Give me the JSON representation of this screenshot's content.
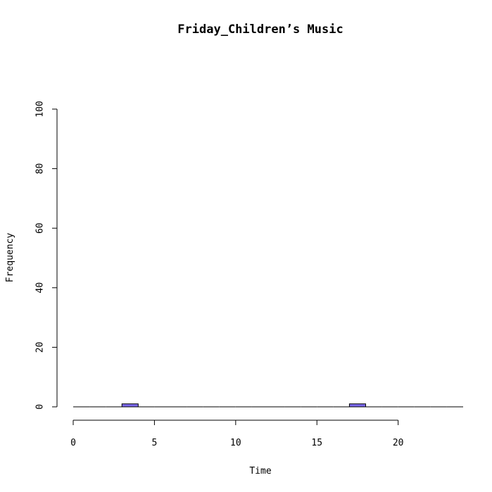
{
  "chart_data": {
    "type": "bar",
    "title": "Friday_Children’s Music",
    "xlabel": "Time",
    "ylabel": "Frequency",
    "xlim": [
      0,
      24
    ],
    "ylim": [
      0,
      100
    ],
    "x_ticks": [
      0,
      5,
      10,
      15,
      20
    ],
    "y_ticks": [
      0,
      20,
      40,
      60,
      80,
      100
    ],
    "bin_width": 1,
    "bin_starts": [
      0,
      1,
      2,
      3,
      4,
      5,
      6,
      7,
      8,
      9,
      10,
      11,
      12,
      13,
      14,
      15,
      16,
      17,
      18,
      19,
      20,
      21,
      22,
      23
    ],
    "values": [
      0,
      0,
      0,
      1,
      0,
      0,
      0,
      0,
      0,
      0,
      0,
      0,
      0,
      0,
      0,
      0,
      0,
      1,
      0,
      0,
      0,
      0,
      0,
      0
    ],
    "bar_color": "#7b68ee",
    "grid": false
  }
}
